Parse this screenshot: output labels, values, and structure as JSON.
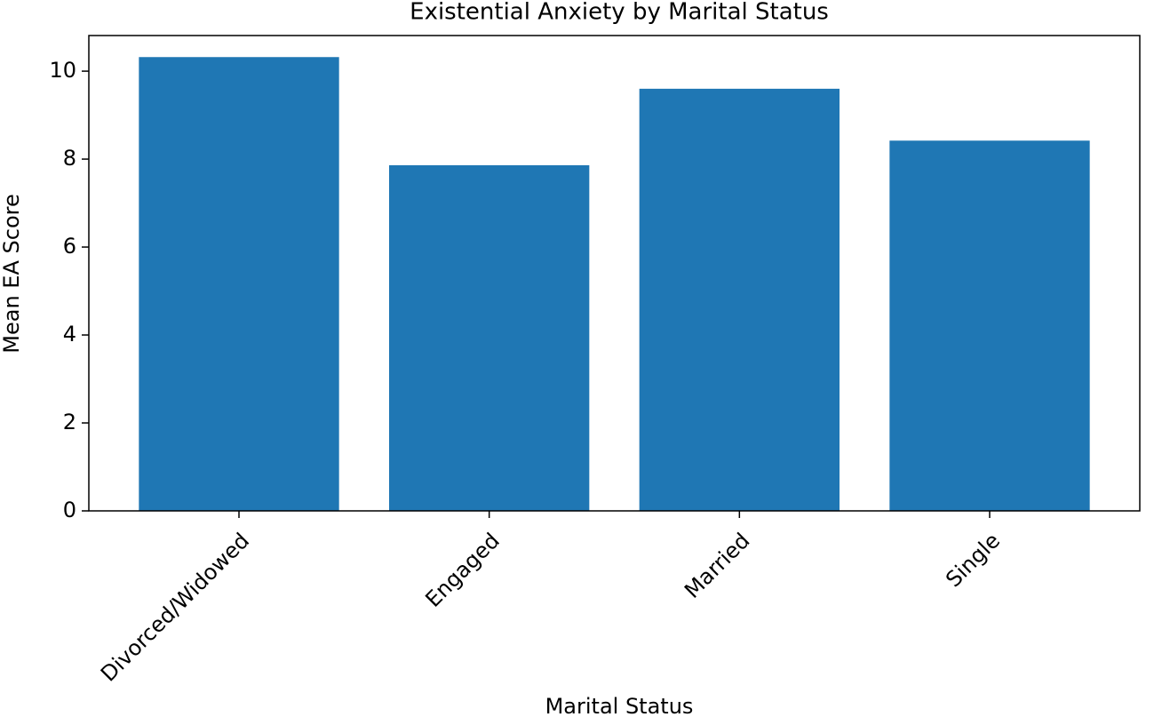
{
  "chart_data": {
    "type": "bar",
    "title": "Existential Anxiety by Marital Status",
    "x_label": "Marital Status",
    "y_label": "Mean EA Score",
    "categories": [
      "Divorced/Widowed",
      "Engaged",
      "Married",
      "Single"
    ],
    "values": [
      10.32,
      7.86,
      9.6,
      8.42
    ],
    "color": "#1f77b4",
    "ylim": [
      0,
      10.81
    ],
    "yticks": [
      0,
      2,
      4,
      6,
      8,
      10
    ],
    "grid": false
  }
}
